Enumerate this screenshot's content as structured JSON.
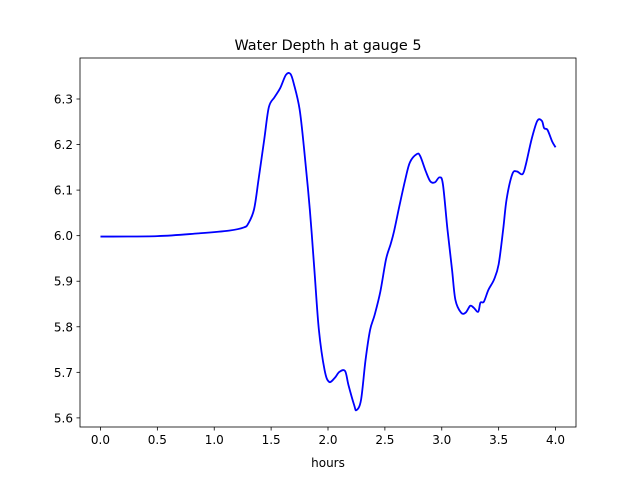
{
  "chart_data": {
    "type": "line",
    "title": "Water Depth h at gauge 5",
    "xlabel": "hours",
    "ylabel": "",
    "xlim": [
      -0.18,
      4.18
    ],
    "ylim": [
      5.58,
      6.39
    ],
    "xticks": [
      0.0,
      0.5,
      1.0,
      1.5,
      2.0,
      2.5,
      3.0,
      3.5,
      4.0
    ],
    "xtick_labels": [
      "0.0",
      "0.5",
      "1.0",
      "1.5",
      "2.0",
      "2.5",
      "3.0",
      "3.5",
      "4.0"
    ],
    "yticks": [
      5.6,
      5.7,
      5.8,
      5.9,
      6.0,
      6.1,
      6.2,
      6.3
    ],
    "ytick_labels": [
      "5.6",
      "5.7",
      "5.8",
      "5.9",
      "6.0",
      "6.1",
      "6.2",
      "6.3"
    ],
    "grid": false,
    "series": [
      {
        "name": "h",
        "color": "#0000ff",
        "x": [
          0,
          0.5,
          0.86,
          1.13,
          1.26,
          1.3,
          1.35,
          1.39,
          1.44,
          1.48,
          1.53,
          1.58,
          1.63,
          1.67,
          1.7,
          1.75,
          1.79,
          1.84,
          1.88,
          1.92,
          1.97,
          2.01,
          2.06,
          2.1,
          2.15,
          2.18,
          2.23,
          2.25,
          2.29,
          2.33,
          2.37,
          2.41,
          2.46,
          2.51,
          2.55,
          2.58,
          2.63,
          2.68,
          2.72,
          2.78,
          2.81,
          2.86,
          2.9,
          2.94,
          2.98,
          3.01,
          3.05,
          3.09,
          3.12,
          3.17,
          3.21,
          3.25,
          3.28,
          3.32,
          3.34,
          3.37,
          3.41,
          3.46,
          3.5,
          3.54,
          3.57,
          3.62,
          3.66,
          3.71,
          3.74,
          3.79,
          3.84,
          3.88,
          3.9,
          3.93,
          3.97,
          4.0
        ],
        "y": [
          5.998,
          5.999,
          6.005,
          6.011,
          6.018,
          6.027,
          6.058,
          6.124,
          6.212,
          6.282,
          6.304,
          6.324,
          6.353,
          6.355,
          6.333,
          6.278,
          6.19,
          6.058,
          5.926,
          5.793,
          5.705,
          5.679,
          5.688,
          5.701,
          5.703,
          5.672,
          5.628,
          5.617,
          5.639,
          5.727,
          5.793,
          5.826,
          5.877,
          5.948,
          5.981,
          6.009,
          6.068,
          6.124,
          6.161,
          6.179,
          6.175,
          6.141,
          6.119,
          6.117,
          6.128,
          6.113,
          6.014,
          5.926,
          5.859,
          5.831,
          5.831,
          5.846,
          5.842,
          5.833,
          5.853,
          5.855,
          5.881,
          5.904,
          5.937,
          6.014,
          6.08,
          6.135,
          6.141,
          6.135,
          6.157,
          6.212,
          6.252,
          6.252,
          6.236,
          6.232,
          6.207,
          6.194
        ]
      }
    ]
  }
}
